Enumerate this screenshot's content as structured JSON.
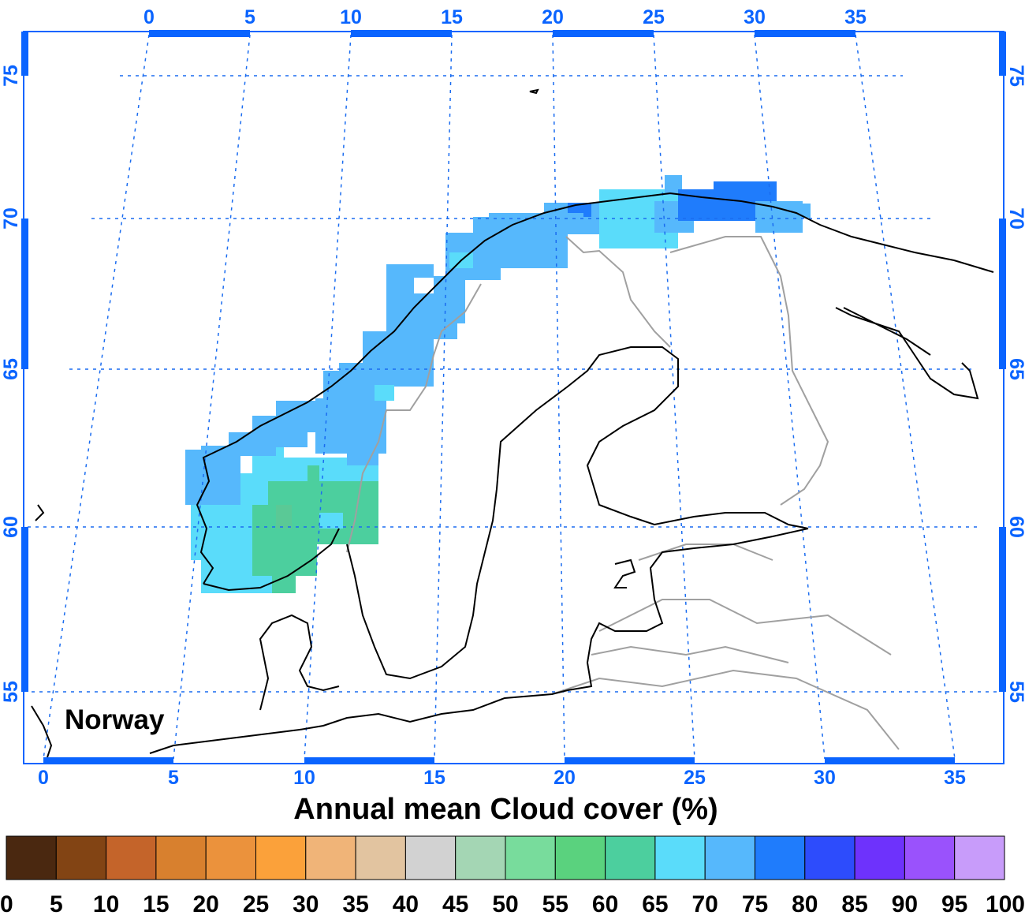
{
  "map": {
    "region_label": "Norway",
    "title": "Annual mean Cloud cover (%)",
    "frame_color": "#0a64ff",
    "grid_color": "#1a6cf0",
    "coastline_color": "#000000",
    "border_color": "#a0a0a0",
    "top_lon_labels": [
      "0",
      "5",
      "10",
      "15",
      "20",
      "25",
      "30",
      "35"
    ],
    "bottom_lon_labels": [
      "0",
      "5",
      "10",
      "15",
      "20",
      "25",
      "30",
      "35"
    ],
    "lat_labels": [
      "75",
      "70",
      "65",
      "60",
      "55"
    ],
    "data_region": "Norway",
    "data_values_pct": "approx. 60–85% cloud cover over Norway"
  },
  "colorbar": {
    "ticks": [
      "0",
      "5",
      "10",
      "15",
      "20",
      "25",
      "30",
      "35",
      "40",
      "45",
      "50",
      "55",
      "60",
      "65",
      "70",
      "75",
      "80",
      "85",
      "90",
      "95",
      "100"
    ],
    "colors": [
      "#4a2810",
      "#824414",
      "#c4642a",
      "#d8802e",
      "#eb923c",
      "#fba13a",
      "#f0b478",
      "#e2c4a0",
      "#d2d2d2",
      "#a4d6b4",
      "#78dc9c",
      "#5ad27e",
      "#4ccf9e",
      "#5adcfa",
      "#56b8fc",
      "#1f7cfc",
      "#2d4cfc",
      "#6e32fc",
      "#9a52fc",
      "#c89cfa"
    ]
  }
}
